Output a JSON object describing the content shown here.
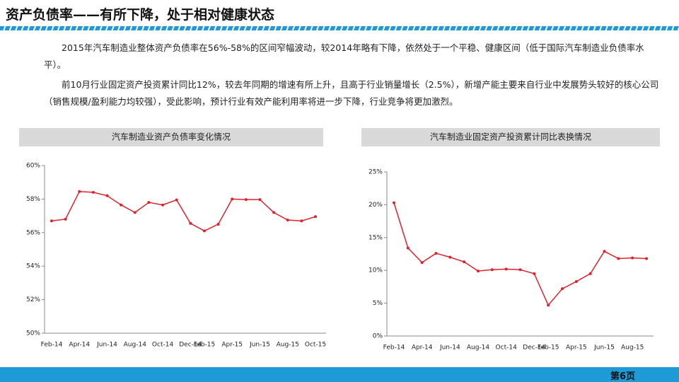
{
  "title": "资产负债率——有所下降，处于相对健康状态",
  "paragraphs": [
    "2015年汽车制造业整体资产负债率在56%-58%的区间窄幅波动，较2014年略有下降，依然处于一个平稳、健康区间（低于国际汽车制造业负债率水平）。",
    "前10月行业固定资产投资累计同比12%，较去年同期的增速有所上升，且高于行业销量增长（2.5%），新增产能主要来自行业中发展势头较好的核心公司（销售规模/盈利能力均较强），受此影响，预计行业有效产能利用率将进一步下降，行业竞争将更加激烈。"
  ],
  "page_label": "第6页",
  "chart_data": [
    {
      "type": "line",
      "title": "汽车制造业资产负债率变化情况",
      "color": "#e0202a",
      "categories": [
        "Feb-14",
        null,
        "Apr-14",
        null,
        "Jun-14",
        null,
        "Aug-14",
        null,
        "Oct-14",
        null,
        "Dec-14",
        "Feb-15",
        null,
        "Apr-15",
        null,
        "Jun-15",
        null,
        "Aug-15",
        null,
        "Oct-15"
      ],
      "values": [
        56.7,
        56.8,
        58.45,
        58.4,
        58.2,
        57.65,
        57.2,
        57.8,
        57.65,
        57.95,
        56.55,
        56.1,
        56.5,
        58.0,
        57.97,
        57.97,
        57.2,
        56.75,
        56.7,
        56.95
      ],
      "ylim": [
        50,
        60
      ],
      "yticks": [
        {
          "value": 50,
          "label": "50%"
        },
        {
          "value": 52,
          "label": "52%"
        },
        {
          "value": 54,
          "label": "54%"
        },
        {
          "value": 56,
          "label": "56%"
        },
        {
          "value": 58,
          "label": "58%"
        },
        {
          "value": 60,
          "label": "60%"
        }
      ]
    },
    {
      "type": "line",
      "title": "汽车制造业固定资产投资累计同比表换情况",
      "color": "#e0202a",
      "categories": [
        "Feb-14",
        null,
        "Apr-14",
        null,
        "Jun-14",
        null,
        "Aug-14",
        null,
        "Oct-14",
        null,
        "Dec-14",
        "Feb-15",
        null,
        "Apr-15",
        null,
        "Jun-15",
        null,
        "Aug-15",
        null
      ],
      "values": [
        20.3,
        13.4,
        11.2,
        12.6,
        12.0,
        11.3,
        9.9,
        10.1,
        10.2,
        10.1,
        9.5,
        4.7,
        7.2,
        8.3,
        9.5,
        12.9,
        11.8,
        11.9,
        11.8
      ],
      "ylim": [
        0,
        25
      ],
      "yticks": [
        {
          "value": 0,
          "label": "0%"
        },
        {
          "value": 5,
          "label": "5%"
        },
        {
          "value": 10,
          "label": "10%"
        },
        {
          "value": 15,
          "label": "15%"
        },
        {
          "value": 20,
          "label": "20%"
        },
        {
          "value": 25,
          "label": "25%"
        }
      ]
    }
  ]
}
